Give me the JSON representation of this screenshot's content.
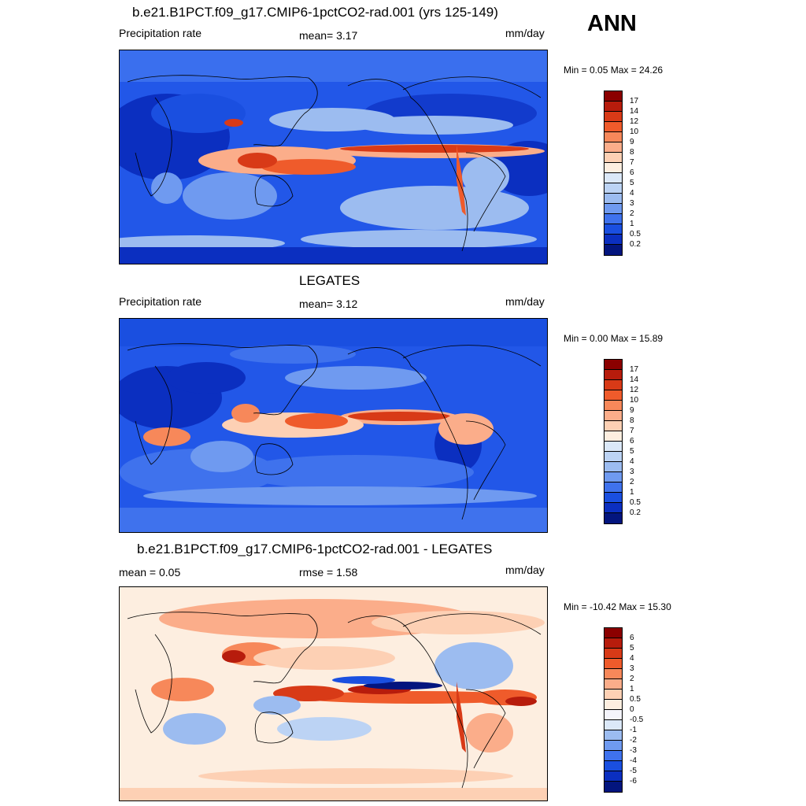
{
  "season": "ANN",
  "panels": [
    {
      "title": "b.e21.B1PCT.f09_g17.CMIP6-1pctCO2-rad.001 (yrs 125-149)",
      "left_label": "Precipitation rate",
      "center_label": "mean=   3.17",
      "units": "mm/day",
      "minmax": "Min =   0.05 Max =  24.26",
      "colorbar_labels": [
        "17",
        "14",
        "12",
        "10",
        "9",
        "8",
        "7",
        "6",
        "5",
        "4",
        "3",
        "2",
        "1",
        "0.5",
        "0.2"
      ],
      "colorbar_colors": [
        "#8b0000",
        "#b71c0c",
        "#d83a17",
        "#ef5b2b",
        "#f7885a",
        "#fbad8a",
        "#fdd0b4",
        "#fdeee0",
        "#dbe8f8",
        "#bcd3f4",
        "#9cbcf0",
        "#6f9af0",
        "#3f72ed",
        "#1a4fe0",
        "#0b2fc0",
        "#03157e"
      ]
    },
    {
      "title": "LEGATES",
      "left_label": "Precipitation rate",
      "center_label": "mean=   3.12",
      "units": "mm/day",
      "minmax": "Min =   0.00 Max =  15.89",
      "colorbar_labels": [
        "17",
        "14",
        "12",
        "10",
        "9",
        "8",
        "7",
        "6",
        "5",
        "4",
        "3",
        "2",
        "1",
        "0.5",
        "0.2"
      ],
      "colorbar_colors": [
        "#8b0000",
        "#b71c0c",
        "#d83a17",
        "#ef5b2b",
        "#f7885a",
        "#fbad8a",
        "#fdd0b4",
        "#fdeee0",
        "#dbe8f8",
        "#bcd3f4",
        "#9cbcf0",
        "#6f9af0",
        "#3f72ed",
        "#1a4fe0",
        "#0b2fc0",
        "#03157e"
      ]
    },
    {
      "title": "b.e21.B1PCT.f09_g17.CMIP6-1pctCO2-rad.001 - LEGATES",
      "left_label": "mean =   0.05",
      "center_label": "rmse =   1.58",
      "units": "mm/day",
      "minmax": "Min = -10.42 Max =  15.30",
      "colorbar_labels": [
        "6",
        "5",
        "4",
        "3",
        "2",
        "1",
        "0.5",
        "0",
        "-0.5",
        "-1",
        "-2",
        "-3",
        "-4",
        "-5",
        "-6"
      ],
      "colorbar_colors": [
        "#8b0000",
        "#b71c0c",
        "#d83a17",
        "#ef5b2b",
        "#f7885a",
        "#fbad8a",
        "#fdd0b4",
        "#fdeee0",
        "#f4f4fb",
        "#dbe8f8",
        "#9cbcf0",
        "#6f9af0",
        "#3f72ed",
        "#1a4fe0",
        "#0b2fc0",
        "#03157e"
      ]
    }
  ]
}
